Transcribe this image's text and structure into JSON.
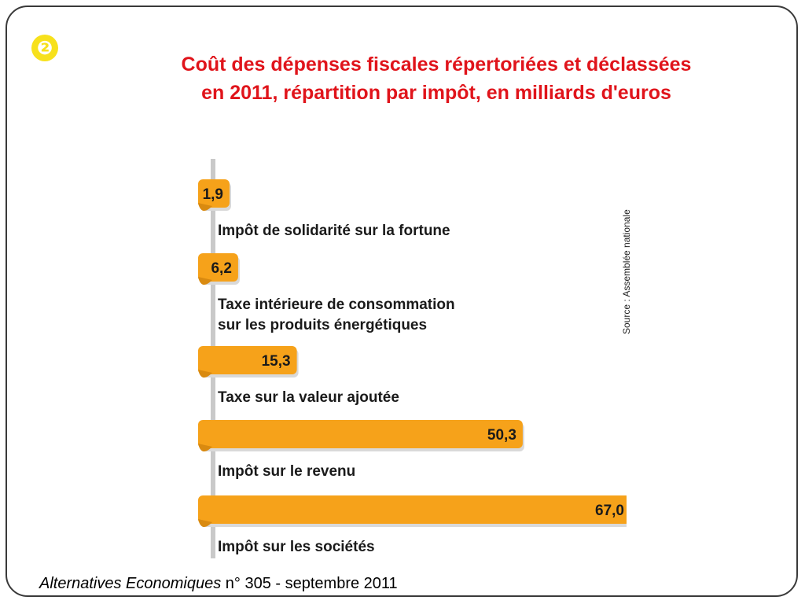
{
  "badge": "❷",
  "title_line1": "Coût des dépenses fiscales répertoriées et déclassées",
  "title_line2": "en 2011, répartition par impôt, en milliards d'euros",
  "source": "Source : Assemblée nationale",
  "footer": {
    "publication": "Alternatives Economiques",
    "issue": " n° 305 - septembre 2011"
  },
  "colors": {
    "bar": "#f6a21a",
    "bar_shadow": "#d98a10",
    "title": "#e0141b",
    "badge": "#f7e11c"
  },
  "chart_data": {
    "type": "bar",
    "orientation": "horizontal",
    "categories": [
      [
        "Impôt de solidarité sur la fortune"
      ],
      [
        "Taxe intérieure de consommation",
        "sur les produits énergétiques"
      ],
      [
        "Taxe sur la valeur ajoutée"
      ],
      [
        "Impôt sur le revenu"
      ],
      [
        "Impôt sur les sociétés"
      ]
    ],
    "values": [
      1.9,
      6.2,
      15.3,
      50.3,
      67.0
    ],
    "value_labels": [
      "1,9",
      "6,2",
      "15,3",
      "50,3",
      "67,0"
    ],
    "xlim": [
      0,
      67.0
    ]
  }
}
